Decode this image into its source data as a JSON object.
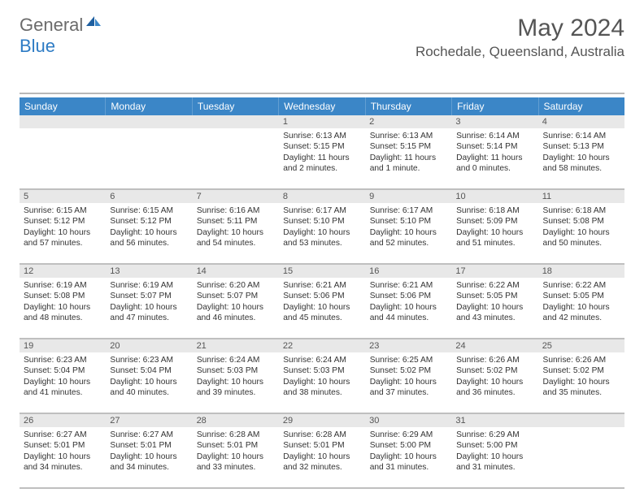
{
  "logo": {
    "text1": "General",
    "text2": "Blue"
  },
  "title": "May 2024",
  "location": "Rochedale, Queensland, Australia",
  "colors": {
    "header_bg": "#3b86c7",
    "daynum_bg": "#e8e8e8",
    "rule": "#bfbfbf",
    "text": "#333333",
    "logo_gray": "#6b6b6b",
    "logo_blue": "#2d7bc4"
  },
  "day_headers": [
    "Sunday",
    "Monday",
    "Tuesday",
    "Wednesday",
    "Thursday",
    "Friday",
    "Saturday"
  ],
  "weeks": [
    {
      "nums": [
        "",
        "",
        "",
        "1",
        "2",
        "3",
        "4"
      ],
      "cells": [
        {},
        {},
        {},
        {
          "sunrise": "Sunrise: 6:13 AM",
          "sunset": "Sunset: 5:15 PM",
          "day1": "Daylight: 11 hours",
          "day2": "and 2 minutes."
        },
        {
          "sunrise": "Sunrise: 6:13 AM",
          "sunset": "Sunset: 5:15 PM",
          "day1": "Daylight: 11 hours",
          "day2": "and 1 minute."
        },
        {
          "sunrise": "Sunrise: 6:14 AM",
          "sunset": "Sunset: 5:14 PM",
          "day1": "Daylight: 11 hours",
          "day2": "and 0 minutes."
        },
        {
          "sunrise": "Sunrise: 6:14 AM",
          "sunset": "Sunset: 5:13 PM",
          "day1": "Daylight: 10 hours",
          "day2": "and 58 minutes."
        }
      ]
    },
    {
      "nums": [
        "5",
        "6",
        "7",
        "8",
        "9",
        "10",
        "11"
      ],
      "cells": [
        {
          "sunrise": "Sunrise: 6:15 AM",
          "sunset": "Sunset: 5:12 PM",
          "day1": "Daylight: 10 hours",
          "day2": "and 57 minutes."
        },
        {
          "sunrise": "Sunrise: 6:15 AM",
          "sunset": "Sunset: 5:12 PM",
          "day1": "Daylight: 10 hours",
          "day2": "and 56 minutes."
        },
        {
          "sunrise": "Sunrise: 6:16 AM",
          "sunset": "Sunset: 5:11 PM",
          "day1": "Daylight: 10 hours",
          "day2": "and 54 minutes."
        },
        {
          "sunrise": "Sunrise: 6:17 AM",
          "sunset": "Sunset: 5:10 PM",
          "day1": "Daylight: 10 hours",
          "day2": "and 53 minutes."
        },
        {
          "sunrise": "Sunrise: 6:17 AM",
          "sunset": "Sunset: 5:10 PM",
          "day1": "Daylight: 10 hours",
          "day2": "and 52 minutes."
        },
        {
          "sunrise": "Sunrise: 6:18 AM",
          "sunset": "Sunset: 5:09 PM",
          "day1": "Daylight: 10 hours",
          "day2": "and 51 minutes."
        },
        {
          "sunrise": "Sunrise: 6:18 AM",
          "sunset": "Sunset: 5:08 PM",
          "day1": "Daylight: 10 hours",
          "day2": "and 50 minutes."
        }
      ]
    },
    {
      "nums": [
        "12",
        "13",
        "14",
        "15",
        "16",
        "17",
        "18"
      ],
      "cells": [
        {
          "sunrise": "Sunrise: 6:19 AM",
          "sunset": "Sunset: 5:08 PM",
          "day1": "Daylight: 10 hours",
          "day2": "and 48 minutes."
        },
        {
          "sunrise": "Sunrise: 6:19 AM",
          "sunset": "Sunset: 5:07 PM",
          "day1": "Daylight: 10 hours",
          "day2": "and 47 minutes."
        },
        {
          "sunrise": "Sunrise: 6:20 AM",
          "sunset": "Sunset: 5:07 PM",
          "day1": "Daylight: 10 hours",
          "day2": "and 46 minutes."
        },
        {
          "sunrise": "Sunrise: 6:21 AM",
          "sunset": "Sunset: 5:06 PM",
          "day1": "Daylight: 10 hours",
          "day2": "and 45 minutes."
        },
        {
          "sunrise": "Sunrise: 6:21 AM",
          "sunset": "Sunset: 5:06 PM",
          "day1": "Daylight: 10 hours",
          "day2": "and 44 minutes."
        },
        {
          "sunrise": "Sunrise: 6:22 AM",
          "sunset": "Sunset: 5:05 PM",
          "day1": "Daylight: 10 hours",
          "day2": "and 43 minutes."
        },
        {
          "sunrise": "Sunrise: 6:22 AM",
          "sunset": "Sunset: 5:05 PM",
          "day1": "Daylight: 10 hours",
          "day2": "and 42 minutes."
        }
      ]
    },
    {
      "nums": [
        "19",
        "20",
        "21",
        "22",
        "23",
        "24",
        "25"
      ],
      "cells": [
        {
          "sunrise": "Sunrise: 6:23 AM",
          "sunset": "Sunset: 5:04 PM",
          "day1": "Daylight: 10 hours",
          "day2": "and 41 minutes."
        },
        {
          "sunrise": "Sunrise: 6:23 AM",
          "sunset": "Sunset: 5:04 PM",
          "day1": "Daylight: 10 hours",
          "day2": "and 40 minutes."
        },
        {
          "sunrise": "Sunrise: 6:24 AM",
          "sunset": "Sunset: 5:03 PM",
          "day1": "Daylight: 10 hours",
          "day2": "and 39 minutes."
        },
        {
          "sunrise": "Sunrise: 6:24 AM",
          "sunset": "Sunset: 5:03 PM",
          "day1": "Daylight: 10 hours",
          "day2": "and 38 minutes."
        },
        {
          "sunrise": "Sunrise: 6:25 AM",
          "sunset": "Sunset: 5:02 PM",
          "day1": "Daylight: 10 hours",
          "day2": "and 37 minutes."
        },
        {
          "sunrise": "Sunrise: 6:26 AM",
          "sunset": "Sunset: 5:02 PM",
          "day1": "Daylight: 10 hours",
          "day2": "and 36 minutes."
        },
        {
          "sunrise": "Sunrise: 6:26 AM",
          "sunset": "Sunset: 5:02 PM",
          "day1": "Daylight: 10 hours",
          "day2": "and 35 minutes."
        }
      ]
    },
    {
      "nums": [
        "26",
        "27",
        "28",
        "29",
        "30",
        "31",
        ""
      ],
      "cells": [
        {
          "sunrise": "Sunrise: 6:27 AM",
          "sunset": "Sunset: 5:01 PM",
          "day1": "Daylight: 10 hours",
          "day2": "and 34 minutes."
        },
        {
          "sunrise": "Sunrise: 6:27 AM",
          "sunset": "Sunset: 5:01 PM",
          "day1": "Daylight: 10 hours",
          "day2": "and 34 minutes."
        },
        {
          "sunrise": "Sunrise: 6:28 AM",
          "sunset": "Sunset: 5:01 PM",
          "day1": "Daylight: 10 hours",
          "day2": "and 33 minutes."
        },
        {
          "sunrise": "Sunrise: 6:28 AM",
          "sunset": "Sunset: 5:01 PM",
          "day1": "Daylight: 10 hours",
          "day2": "and 32 minutes."
        },
        {
          "sunrise": "Sunrise: 6:29 AM",
          "sunset": "Sunset: 5:00 PM",
          "day1": "Daylight: 10 hours",
          "day2": "and 31 minutes."
        },
        {
          "sunrise": "Sunrise: 6:29 AM",
          "sunset": "Sunset: 5:00 PM",
          "day1": "Daylight: 10 hours",
          "day2": "and 31 minutes."
        },
        {}
      ]
    }
  ]
}
